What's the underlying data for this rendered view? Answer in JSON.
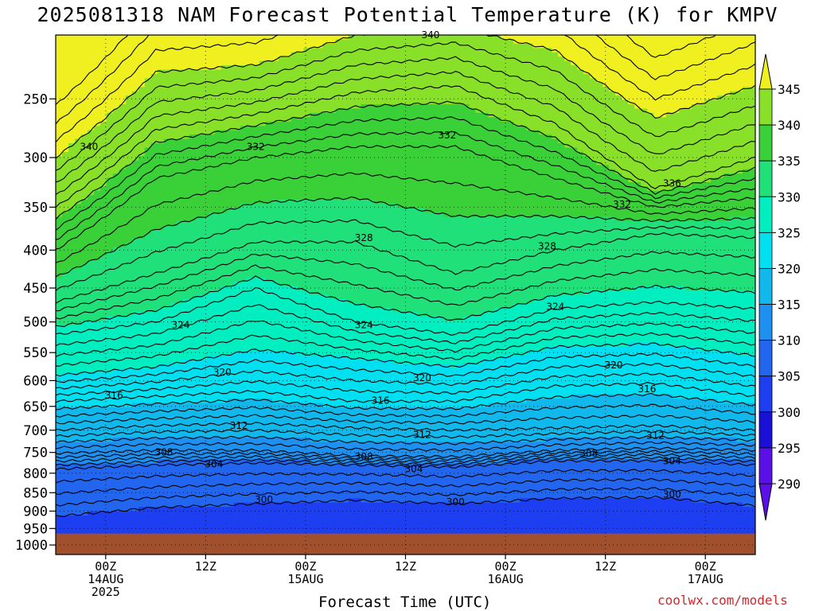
{
  "title": "2025081318 NAM Forecast Potential Temperature (K) for KMPV",
  "xlabel": "Forecast Time (UTC)",
  "credit": "coolwx.com/models",
  "colors": {
    "fill_levels": [
      290,
      295,
      300,
      305,
      310,
      315,
      320,
      325,
      330,
      335,
      340,
      345
    ],
    "fill_colors": [
      "#5a10e6",
      "#1a10d8",
      "#1e3ef2",
      "#2266f0",
      "#1e90f0",
      "#10b8ec",
      "#00e0f0",
      "#00eec0",
      "#20e07a",
      "#3ad038",
      "#88e028",
      "#f0f020"
    ],
    "ground": "#a0502c",
    "contour": "#000000",
    "credit": "#d0282a"
  },
  "chart_data": {
    "type": "contour",
    "title": "2025081318 NAM Forecast Potential Temperature (K) for KMPV",
    "xlabel": "Forecast Time (UTC)",
    "ylabel": "",
    "units": "K",
    "y_scale": "log-pressure (hPa), inverted",
    "ylim": [
      1000,
      200
    ],
    "yticks": [
      250,
      300,
      350,
      400,
      450,
      500,
      550,
      600,
      650,
      700,
      750,
      800,
      850,
      900,
      950,
      1000
    ],
    "ytick_labels": [
      "250",
      "300",
      "350",
      "400",
      "450",
      "500",
      "550",
      "600",
      "650",
      "700",
      "750",
      "800",
      "850",
      "900",
      "950",
      "1000"
    ],
    "x_hours_range": [
      0,
      84
    ],
    "xticks": [
      {
        "hour": 6,
        "lines": [
          "00Z",
          "14AUG",
          "2025"
        ]
      },
      {
        "hour": 18,
        "lines": [
          "12Z"
        ]
      },
      {
        "hour": 30,
        "lines": [
          "00Z",
          "15AUG"
        ]
      },
      {
        "hour": 42,
        "lines": [
          "12Z"
        ]
      },
      {
        "hour": 54,
        "lines": [
          "00Z",
          "16AUG"
        ]
      },
      {
        "hour": 66,
        "lines": [
          "12Z"
        ]
      },
      {
        "hour": 78,
        "lines": [
          "00Z",
          "17AUG"
        ]
      }
    ],
    "grid": true,
    "colorbar": {
      "levels": [
        290,
        295,
        300,
        305,
        310,
        315,
        320,
        325,
        330,
        335,
        340,
        345
      ],
      "labels": [
        "345",
        "340",
        "335",
        "330",
        "325",
        "320",
        "315",
        "310",
        "305",
        "300",
        "295",
        "290"
      ]
    },
    "surface_pressure_hPa": 965,
    "isentropes_K": [
      300,
      304,
      308,
      312,
      316,
      320,
      324,
      328,
      332,
      336,
      340
    ],
    "isentrope_profiles": [
      {
        "theta": 300,
        "x": [
          0,
          12,
          24,
          36,
          48,
          60,
          72,
          84
        ],
        "p": [
          915,
          890,
          880,
          870,
          880,
          865,
          862,
          885
        ]
      },
      {
        "theta": 304,
        "x": [
          0,
          12,
          24,
          36,
          48,
          60,
          72,
          84
        ],
        "p": [
          790,
          780,
          775,
          780,
          785,
          770,
          770,
          780
        ]
      },
      {
        "theta": 308,
        "x": [
          0,
          12,
          24,
          36,
          48,
          60,
          72,
          84
        ],
        "p": [
          752,
          745,
          745,
          758,
          760,
          745,
          740,
          745
        ]
      },
      {
        "theta": 312,
        "x": [
          0,
          12,
          24,
          36,
          48,
          60,
          72,
          84
        ],
        "p": [
          700,
          690,
          685,
          695,
          700,
          695,
          690,
          700
        ]
      },
      {
        "theta": 316,
        "x": [
          0,
          12,
          24,
          36,
          48,
          60,
          72,
          84
        ],
        "p": [
          640,
          630,
          620,
          640,
          640,
          610,
          605,
          630
        ]
      },
      {
        "theta": 320,
        "x": [
          0,
          12,
          24,
          36,
          48,
          60,
          72,
          84
        ],
        "p": [
          590,
          575,
          545,
          560,
          575,
          540,
          535,
          555
        ]
      },
      {
        "theta": 324,
        "x": [
          0,
          12,
          24,
          36,
          48,
          60,
          72,
          84
        ],
        "p": [
          520,
          500,
          450,
          500,
          520,
          480,
          470,
          480
        ]
      },
      {
        "theta": 328,
        "x": [
          0,
          12,
          24,
          36,
          48,
          60,
          72,
          84
        ],
        "p": [
          470,
          430,
          390,
          390,
          430,
          400,
          380,
          385
        ]
      },
      {
        "theta": 332,
        "x": [
          0,
          12,
          24,
          36,
          48,
          60,
          72,
          84
        ],
        "p": [
          400,
          320,
          300,
          290,
          290,
          320,
          350,
          340
        ]
      },
      {
        "theta": 336,
        "x": [
          0,
          12,
          24,
          36,
          48,
          60,
          72,
          84
        ],
        "p": [
          350,
          275,
          262,
          245,
          240,
          270,
          330,
          300
        ]
      },
      {
        "theta": 340,
        "x": [
          0,
          12,
          24,
          36,
          48,
          60,
          72,
          84
        ],
        "p": [
          300,
          230,
          225,
          205,
          200,
          215,
          265,
          240
        ]
      }
    ],
    "contour_labels": [
      {
        "text": "340",
        "hour": 45,
        "p": 205
      },
      {
        "text": "340",
        "hour": 4,
        "p": 290
      },
      {
        "text": "332",
        "hour": 24,
        "p": 290
      },
      {
        "text": "332",
        "hour": 47,
        "p": 280
      },
      {
        "text": "336",
        "hour": 74,
        "p": 325
      },
      {
        "text": "332",
        "hour": 68,
        "p": 347
      },
      {
        "text": "328",
        "hour": 37,
        "p": 385
      },
      {
        "text": "328",
        "hour": 59,
        "p": 395
      },
      {
        "text": "324",
        "hour": 15,
        "p": 505
      },
      {
        "text": "324",
        "hour": 37,
        "p": 505
      },
      {
        "text": "324",
        "hour": 60,
        "p": 477
      },
      {
        "text": "320",
        "hour": 20,
        "p": 585
      },
      {
        "text": "320",
        "hour": 44,
        "p": 595
      },
      {
        "text": "320",
        "hour": 67,
        "p": 572
      },
      {
        "text": "316",
        "hour": 7,
        "p": 628
      },
      {
        "text": "316",
        "hour": 39,
        "p": 638
      },
      {
        "text": "316",
        "hour": 71,
        "p": 616
      },
      {
        "text": "312",
        "hour": 22,
        "p": 690
      },
      {
        "text": "312",
        "hour": 44,
        "p": 710
      },
      {
        "text": "312",
        "hour": 72,
        "p": 712
      },
      {
        "text": "308",
        "hour": 13,
        "p": 750
      },
      {
        "text": "308",
        "hour": 37,
        "p": 760
      },
      {
        "text": "308",
        "hour": 64,
        "p": 752
      },
      {
        "text": "304",
        "hour": 19,
        "p": 778
      },
      {
        "text": "304",
        "hour": 43,
        "p": 790
      },
      {
        "text": "304",
        "hour": 74,
        "p": 770
      },
      {
        "text": "300",
        "hour": 25,
        "p": 868
      },
      {
        "text": "300",
        "hour": 48,
        "p": 875
      },
      {
        "text": "300",
        "hour": 74,
        "p": 855
      }
    ]
  }
}
